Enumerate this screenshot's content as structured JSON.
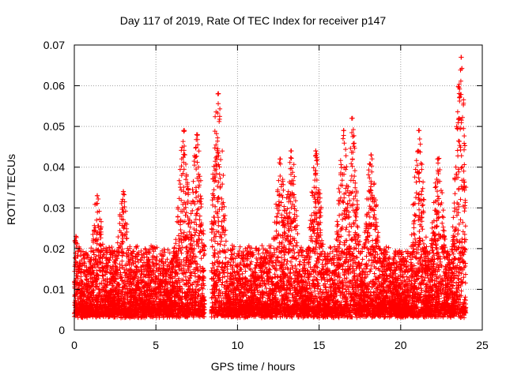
{
  "chart_data": {
    "type": "scatter",
    "title": "Day 117 of 2019, Rate Of TEC Index for receiver p147",
    "xlabel": "GPS time / hours",
    "ylabel": "ROTI / TECUs",
    "xlim": [
      0,
      25
    ],
    "ylim": [
      0,
      0.07
    ],
    "xticks": [
      0,
      5,
      10,
      15,
      20,
      25
    ],
    "xtick_labels": [
      "0",
      "5",
      "10",
      "15",
      "20",
      "25"
    ],
    "yticks": [
      0,
      0.01,
      0.02,
      0.03,
      0.04,
      0.05,
      0.06,
      0.07
    ],
    "ytick_labels": [
      "0",
      "0.01",
      "0.02",
      "0.03",
      "0.04",
      "0.05",
      "0.06",
      "0.07"
    ],
    "grid": true,
    "marker": "+",
    "color": "#ff0000",
    "series": [
      {
        "name": "ROTI",
        "points_note": "dense point cloud, mostly 0.005-0.03 TECU/s; notable peaks listed",
        "peaks": [
          {
            "x": 0.1,
            "y": 0.023
          },
          {
            "x": 1.4,
            "y": 0.033
          },
          {
            "x": 3.0,
            "y": 0.034
          },
          {
            "x": 6.7,
            "y": 0.049
          },
          {
            "x": 7.5,
            "y": 0.048
          },
          {
            "x": 8.8,
            "y": 0.058
          },
          {
            "x": 12.6,
            "y": 0.042
          },
          {
            "x": 13.3,
            "y": 0.044
          },
          {
            "x": 14.8,
            "y": 0.044
          },
          {
            "x": 16.5,
            "y": 0.049
          },
          {
            "x": 17.0,
            "y": 0.052
          },
          {
            "x": 18.2,
            "y": 0.043
          },
          {
            "x": 21.1,
            "y": 0.049
          },
          {
            "x": 22.3,
            "y": 0.042
          },
          {
            "x": 23.7,
            "y": 0.067
          }
        ],
        "data_gap_hours": [
          8.0,
          8.4
        ],
        "baseline_range": [
          0.004,
          0.03
        ]
      }
    ]
  }
}
